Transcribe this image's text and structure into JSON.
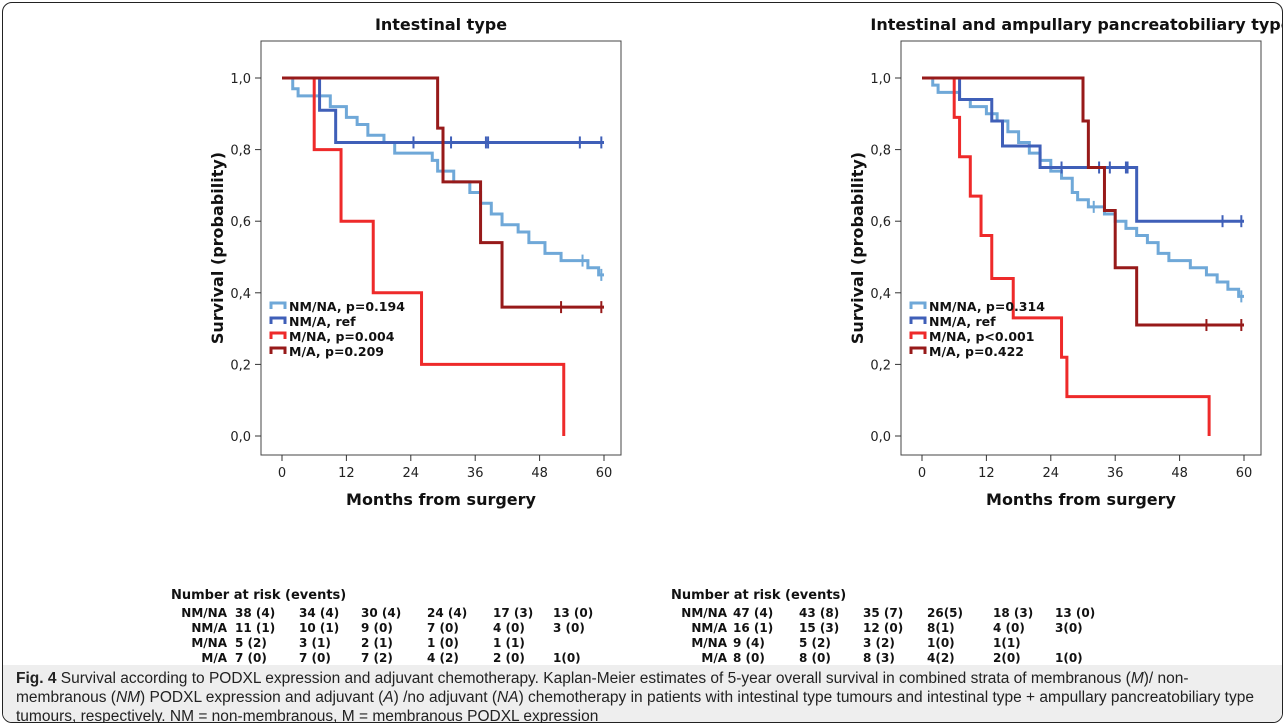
{
  "figure_label": "Fig. 4",
  "caption_parts": [
    {
      "text": " Survival according to PODXL expression and adjuvant chemotherapy. Kaplan-Meier estimates of 5-year overall survival in combined strata of membranous (",
      "i": false
    },
    {
      "text": "M",
      "i": true
    },
    {
      "text": ")/ non-membranous (",
      "i": false
    },
    {
      "text": "NM",
      "i": true
    },
    {
      "text": ") PODXL expression and adjuvant (",
      "i": false
    },
    {
      "text": "A",
      "i": true
    },
    {
      "text": ") /no adjuvant (",
      "i": false
    },
    {
      "text": "NA",
      "i": true
    },
    {
      "text": ") chemotherapy in patients with intestinal type tumours and intestinal type + ampullary pancreatobiliary type tumours, respectively. NM = non-membranous, M = membranous PODXL expression",
      "i": false
    }
  ],
  "colors": {
    "NM/NA": "#6fa8d8",
    "NM/A": "#3f5fb8",
    "M/NA": "#ee2a2a",
    "M/A": "#971a1a"
  },
  "chart_data": [
    {
      "type": "line",
      "title": "Intestinal type",
      "xlabel": "Months from surgery",
      "ylabel": "Survival (probability)",
      "xlim": [
        0,
        60
      ],
      "ylim": [
        0,
        1
      ],
      "x_ticks": [
        "0",
        "12",
        "24",
        "36",
        "48",
        "60"
      ],
      "y_ticks": [
        "0,0",
        "0,2",
        "0,4",
        "0,6",
        "0,8",
        "1,0"
      ],
      "legend": [
        "NM/NA, p=0.194",
        "NM/A, ref",
        "M/NA, p=0.004",
        "M/A, p=0.209"
      ],
      "series": [
        {
          "name": "NM/NA",
          "steps": [
            [
              0,
              1.0
            ],
            [
              2,
              0.97
            ],
            [
              3,
              0.95
            ],
            [
              5,
              0.95
            ],
            [
              9,
              0.92
            ],
            [
              12,
              0.89
            ],
            [
              14,
              0.87
            ],
            [
              16,
              0.84
            ],
            [
              19,
              0.82
            ],
            [
              21,
              0.79
            ],
            [
              28,
              0.77
            ],
            [
              29,
              0.74
            ],
            [
              32,
              0.71
            ],
            [
              35,
              0.68
            ],
            [
              37,
              0.65
            ],
            [
              39,
              0.62
            ],
            [
              41,
              0.59
            ],
            [
              44,
              0.57
            ],
            [
              46,
              0.54
            ],
            [
              49,
              0.51
            ],
            [
              52,
              0.49
            ],
            [
              55,
              0.49
            ],
            [
              57,
              0.47
            ],
            [
              59,
              0.45
            ]
          ],
          "end": 60,
          "censored": [
            [
              56,
              0.49
            ],
            [
              59.5,
              0.45
            ]
          ]
        },
        {
          "name": "NM/A",
          "steps": [
            [
              0,
              1.0
            ],
            [
              7,
              0.91
            ],
            [
              10,
              0.82
            ]
          ],
          "end": 60,
          "censored": [
            [
              24.5,
              0.82
            ],
            [
              31.5,
              0.82
            ],
            [
              38,
              0.82
            ],
            [
              38.4,
              0.82
            ],
            [
              55.5,
              0.82
            ],
            [
              59.5,
              0.82
            ]
          ]
        },
        {
          "name": "M/NA",
          "steps": [
            [
              0,
              1.0
            ],
            [
              6,
              0.8
            ],
            [
              11,
              0.6
            ],
            [
              17,
              0.4
            ],
            [
              26,
              0.2
            ],
            [
              52.5,
              0.0
            ]
          ],
          "end": 52.5,
          "censored": []
        },
        {
          "name": "M/A",
          "steps": [
            [
              0,
              1.0
            ],
            [
              29,
              0.86
            ],
            [
              30,
              0.71
            ],
            [
              35,
              0.71
            ],
            [
              37,
              0.54
            ],
            [
              41,
              0.36
            ]
          ],
          "end": 60,
          "censored": [
            [
              52,
              0.36
            ],
            [
              59.5,
              0.36
            ]
          ]
        }
      ],
      "risk_table": {
        "title": "Number at risk (events)",
        "rows": [
          {
            "label": "NM/NA",
            "values": [
              "38 (4)",
              "34 (4)",
              "30 (4)",
              "24 (4)",
              "17 (3)",
              "13 (0)"
            ]
          },
          {
            "label": "NM/A",
            "values": [
              "11 (1)",
              "10 (1)",
              "9 (0)",
              "7 (0)",
              "4 (0)",
              "3 (0)"
            ]
          },
          {
            "label": "M/NA",
            "values": [
              "5 (2)",
              "3 (1)",
              "2 (1)",
              "1 (0)",
              "1 (1)",
              ""
            ]
          },
          {
            "label": "M/A",
            "values": [
              "7 (0)",
              "7 (0)",
              "7 (2)",
              "4 (2)",
              "2 (0)",
              "1(0)"
            ]
          }
        ]
      }
    },
    {
      "type": "line",
      "title": "Intestinal and ampullary pancreatobiliary type",
      "xlabel": "Months from surgery",
      "ylabel": "Survival (probability)",
      "xlim": [
        0,
        60
      ],
      "ylim": [
        0,
        1
      ],
      "x_ticks": [
        "0",
        "12",
        "24",
        "36",
        "48",
        "60"
      ],
      "y_ticks": [
        "0,0",
        "0,2",
        "0,4",
        "0,6",
        "0,8",
        "1,0"
      ],
      "legend": [
        "NM/NA, p=0.314",
        "NM/A, ref",
        "M/NA, p<0.001",
        "M/A, p=0.422"
      ],
      "series": [
        {
          "name": "NM/NA",
          "steps": [
            [
              0,
              1.0
            ],
            [
              2,
              0.98
            ],
            [
              3,
              0.96
            ],
            [
              7,
              0.94
            ],
            [
              9,
              0.92
            ],
            [
              12,
              0.9
            ],
            [
              14,
              0.88
            ],
            [
              16,
              0.85
            ],
            [
              18,
              0.82
            ],
            [
              20,
              0.79
            ],
            [
              22,
              0.77
            ],
            [
              24,
              0.74
            ],
            [
              26,
              0.72
            ],
            [
              28,
              0.68
            ],
            [
              29,
              0.66
            ],
            [
              31,
              0.64
            ],
            [
              34,
              0.62
            ],
            [
              36,
              0.6
            ],
            [
              38,
              0.58
            ],
            [
              40,
              0.56
            ],
            [
              42,
              0.54
            ],
            [
              44,
              0.51
            ],
            [
              46,
              0.49
            ],
            [
              50,
              0.47
            ],
            [
              53,
              0.45
            ],
            [
              55,
              0.43
            ],
            [
              57,
              0.41
            ],
            [
              59,
              0.39
            ]
          ],
          "end": 60,
          "censored": [
            [
              32,
              0.64
            ],
            [
              59.5,
              0.39
            ]
          ]
        },
        {
          "name": "NM/A",
          "steps": [
            [
              0,
              1.0
            ],
            [
              7,
              0.94
            ],
            [
              13,
              0.88
            ],
            [
              15,
              0.81
            ],
            [
              22,
              0.75
            ],
            [
              40,
              0.6
            ]
          ],
          "end": 60,
          "censored": [
            [
              26,
              0.75
            ],
            [
              33,
              0.75
            ],
            [
              35,
              0.75
            ],
            [
              38,
              0.75
            ],
            [
              38.3,
              0.75
            ],
            [
              56,
              0.6
            ],
            [
              59.5,
              0.6
            ]
          ]
        },
        {
          "name": "M/NA",
          "steps": [
            [
              0,
              1.0
            ],
            [
              6,
              0.89
            ],
            [
              7,
              0.78
            ],
            [
              9,
              0.67
            ],
            [
              11,
              0.56
            ],
            [
              13,
              0.44
            ],
            [
              17,
              0.33
            ],
            [
              26,
              0.22
            ],
            [
              27,
              0.11
            ],
            [
              53.5,
              0.0
            ]
          ],
          "end": 53.5,
          "censored": []
        },
        {
          "name": "M/A",
          "steps": [
            [
              0,
              1.0
            ],
            [
              30,
              0.88
            ],
            [
              31,
              0.75
            ],
            [
              34,
              0.63
            ],
            [
              36,
              0.47
            ],
            [
              40,
              0.31
            ]
          ],
          "end": 60,
          "censored": [
            [
              53,
              0.31
            ],
            [
              59.5,
              0.31
            ]
          ]
        }
      ],
      "risk_table": {
        "title": "Number at risk (events)",
        "rows": [
          {
            "label": "NM/NA",
            "values": [
              "47 (4)",
              "43 (8)",
              "35 (7)",
              "26(5)",
              "18 (3)",
              "13 (0)"
            ]
          },
          {
            "label": "NM/A",
            "values": [
              "16 (1)",
              "15 (3)",
              "12 (0)",
              "8(1)",
              "4 (0)",
              "3(0)"
            ]
          },
          {
            "label": "M/NA",
            "values": [
              "9 (4)",
              "5 (2)",
              "3 (2)",
              "1(0)",
              "1(1)",
              ""
            ]
          },
          {
            "label": "M/A",
            "values": [
              "8 (0)",
              "8 (0)",
              "8 (3)",
              "4(2)",
              "2(0)",
              "1(0)"
            ]
          }
        ]
      }
    }
  ]
}
